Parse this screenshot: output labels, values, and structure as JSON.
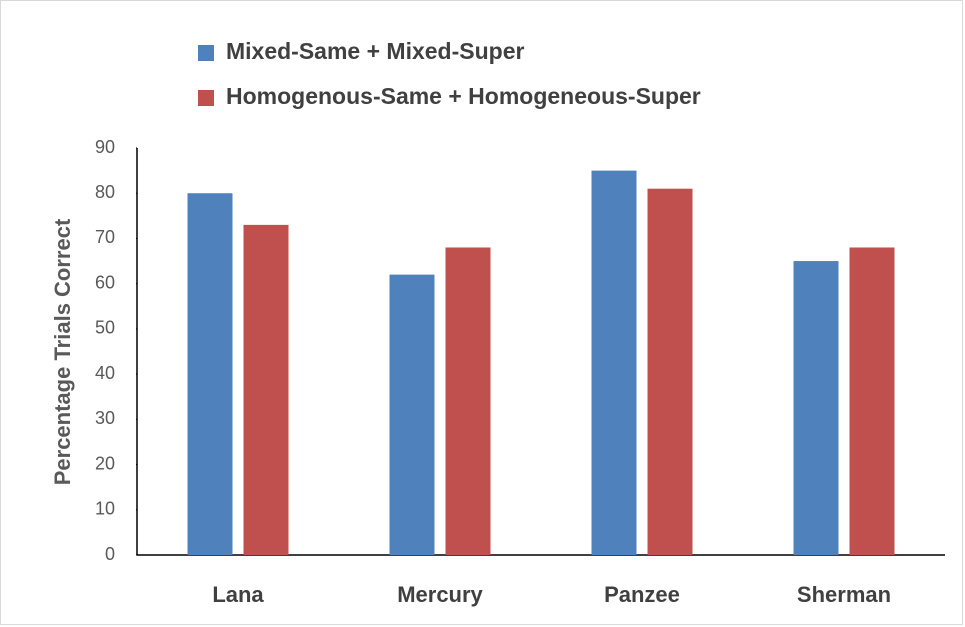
{
  "chart_data": {
    "type": "bar",
    "categories": [
      "Lana",
      "Mercury",
      "Panzee",
      "Sherman"
    ],
    "series": [
      {
        "name": "Mixed-Same + Mixed-Super",
        "color": "#4f81bd",
        "values": [
          80,
          62,
          85,
          65
        ]
      },
      {
        "name": "Homogenous-Same + Homogeneous-Super",
        "color": "#c0504d",
        "values": [
          73,
          68,
          81,
          68
        ]
      }
    ],
    "y_label": "Percentage Trials Correct",
    "ylim": [
      0,
      90
    ],
    "yticks": [
      0,
      10,
      20,
      30,
      40,
      50,
      60,
      70,
      80,
      90
    ],
    "legend": "top"
  }
}
